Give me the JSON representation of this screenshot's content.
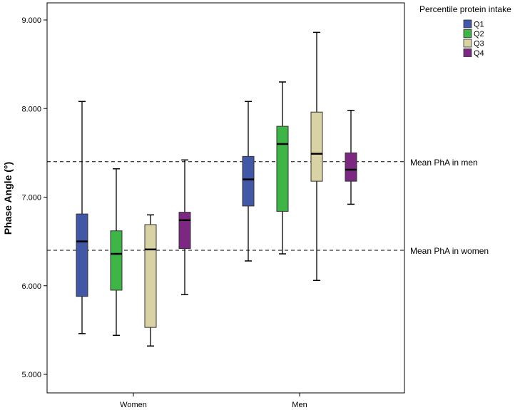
{
  "chart_data": {
    "type": "boxplot",
    "ylabel": "Phase Angle (°)",
    "xlabel": "",
    "ylim": [
      4.8,
      9.2
    ],
    "yticks": [
      5.0,
      6.0,
      7.0,
      8.0,
      9.0
    ],
    "ytick_labels": [
      "5.000",
      "6.000",
      "7.000",
      "8.000",
      "9.000"
    ],
    "categories": [
      "Women",
      "Men"
    ],
    "legend": {
      "title": "Percentile protein intake",
      "placement": "top-right-outside",
      "entries": [
        {
          "name": "Q1",
          "color": "#4258a6"
        },
        {
          "name": "Q2",
          "color": "#3fb548"
        },
        {
          "name": "Q3",
          "color": "#d9d2a4"
        },
        {
          "name": "Q4",
          "color": "#7c2882"
        }
      ]
    },
    "series": [
      {
        "name": "Q1",
        "color": "#4258a6",
        "boxes": [
          {
            "category": "Women",
            "min": 5.46,
            "q1": 5.88,
            "median": 6.5,
            "q3": 6.81,
            "max": 8.08
          },
          {
            "category": "Men",
            "min": 6.28,
            "q1": 6.9,
            "median": 7.2,
            "q3": 7.46,
            "max": 8.08
          }
        ]
      },
      {
        "name": "Q2",
        "color": "#3fb548",
        "boxes": [
          {
            "category": "Women",
            "min": 5.44,
            "q1": 5.95,
            "median": 6.36,
            "q3": 6.62,
            "max": 7.32
          },
          {
            "category": "Men",
            "min": 6.36,
            "q1": 6.84,
            "median": 7.6,
            "q3": 7.8,
            "max": 8.3
          }
        ]
      },
      {
        "name": "Q3",
        "color": "#d9d2a4",
        "boxes": [
          {
            "category": "Women",
            "min": 5.32,
            "q1": 5.53,
            "median": 6.41,
            "q3": 6.69,
            "max": 6.8
          },
          {
            "category": "Men",
            "min": 6.06,
            "q1": 7.18,
            "median": 7.49,
            "q3": 7.96,
            "max": 8.86
          }
        ]
      },
      {
        "name": "Q4",
        "color": "#7c2882",
        "boxes": [
          {
            "category": "Women",
            "min": 5.9,
            "q1": 6.42,
            "median": 6.74,
            "q3": 6.83,
            "max": 7.42
          },
          {
            "category": "Men",
            "min": 6.92,
            "q1": 7.18,
            "median": 7.31,
            "q3": 7.5,
            "max": 7.98
          }
        ]
      }
    ],
    "reference_lines": [
      {
        "name": "mean-men",
        "value": 7.4,
        "label": "Mean PhA in men"
      },
      {
        "name": "mean-women",
        "value": 6.4,
        "label": "Mean PhA in women"
      }
    ]
  }
}
